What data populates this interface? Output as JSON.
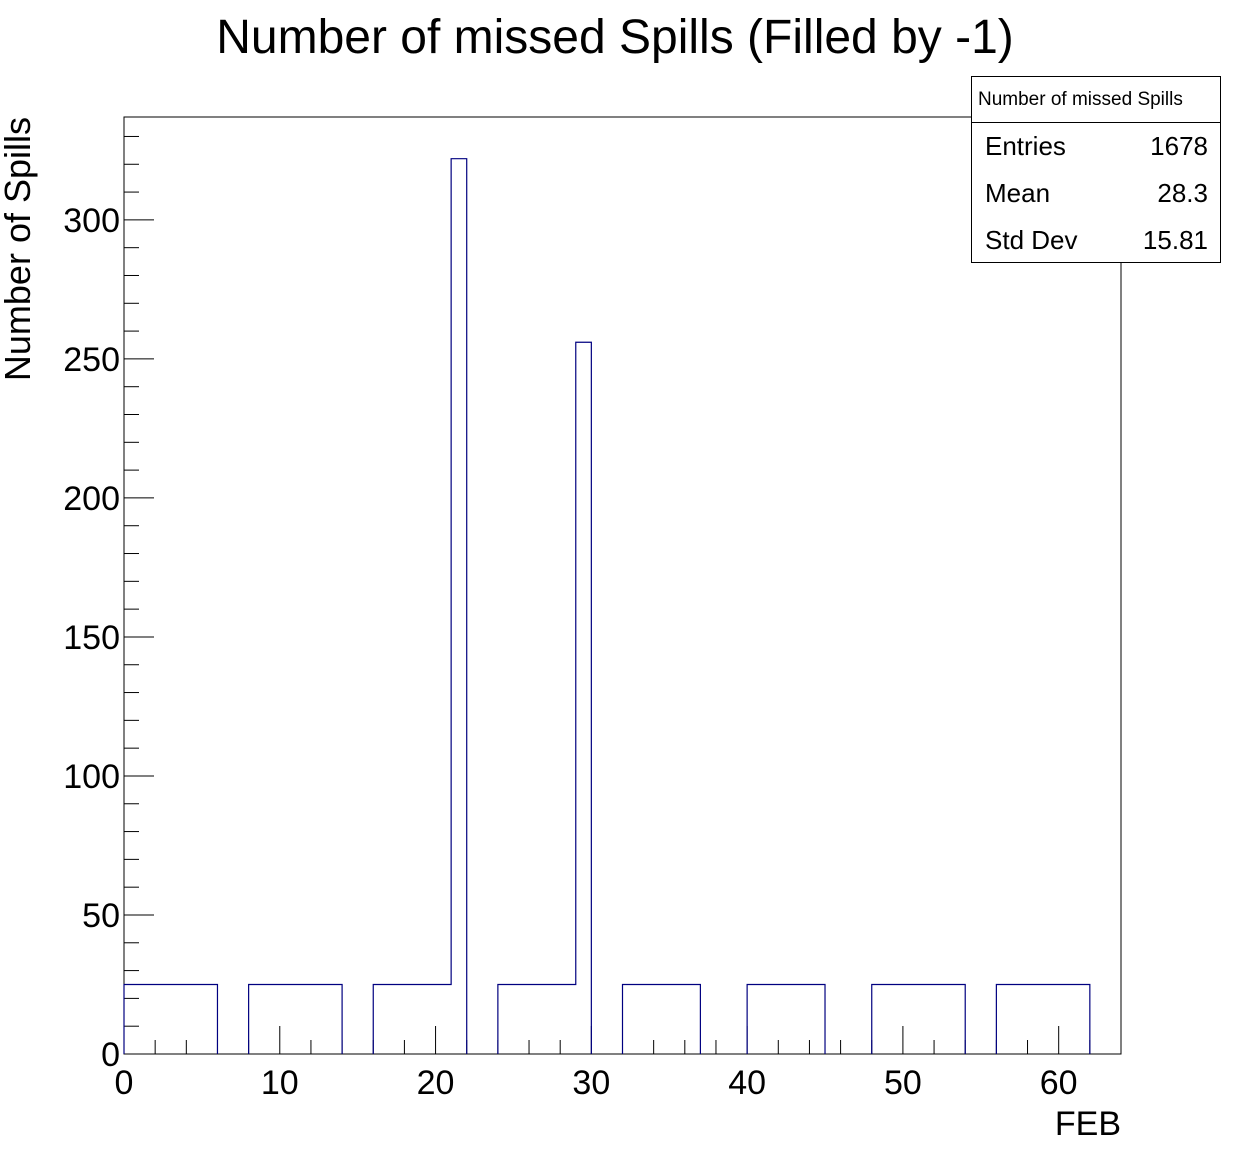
{
  "chart_data": {
    "type": "histogram",
    "title": "Number of missed Spills (Filled by -1)",
    "xlabel": "FEB",
    "ylabel": "Number of Spills",
    "xlim": [
      0,
      64
    ],
    "ylim": [
      0,
      337
    ],
    "xticks": [
      0,
      10,
      20,
      30,
      40,
      50,
      60
    ],
    "yticks": [
      0,
      50,
      100,
      150,
      200,
      250,
      300
    ],
    "line_color": "#000080",
    "bins": [
      {
        "x0": 0,
        "x1": 6,
        "value": 25
      },
      {
        "x0": 8,
        "x1": 14,
        "value": 25
      },
      {
        "x0": 16,
        "x1": 21,
        "value": 25
      },
      {
        "x0": 21,
        "x1": 22,
        "value": 322
      },
      {
        "x0": 24,
        "x1": 29,
        "value": 25
      },
      {
        "x0": 29,
        "x1": 30,
        "value": 256
      },
      {
        "x0": 32,
        "x1": 37,
        "value": 25
      },
      {
        "x0": 40,
        "x1": 45,
        "value": 25
      },
      {
        "x0": 48,
        "x1": 54,
        "value": 25
      },
      {
        "x0": 56,
        "x1": 62,
        "value": 25
      }
    ]
  },
  "stats": {
    "title": "Number of missed Spills",
    "rows": [
      {
        "label": "Entries",
        "value": "1678"
      },
      {
        "label": "Mean",
        "value": "28.3"
      },
      {
        "label": "Std Dev",
        "value": "15.81"
      }
    ]
  }
}
